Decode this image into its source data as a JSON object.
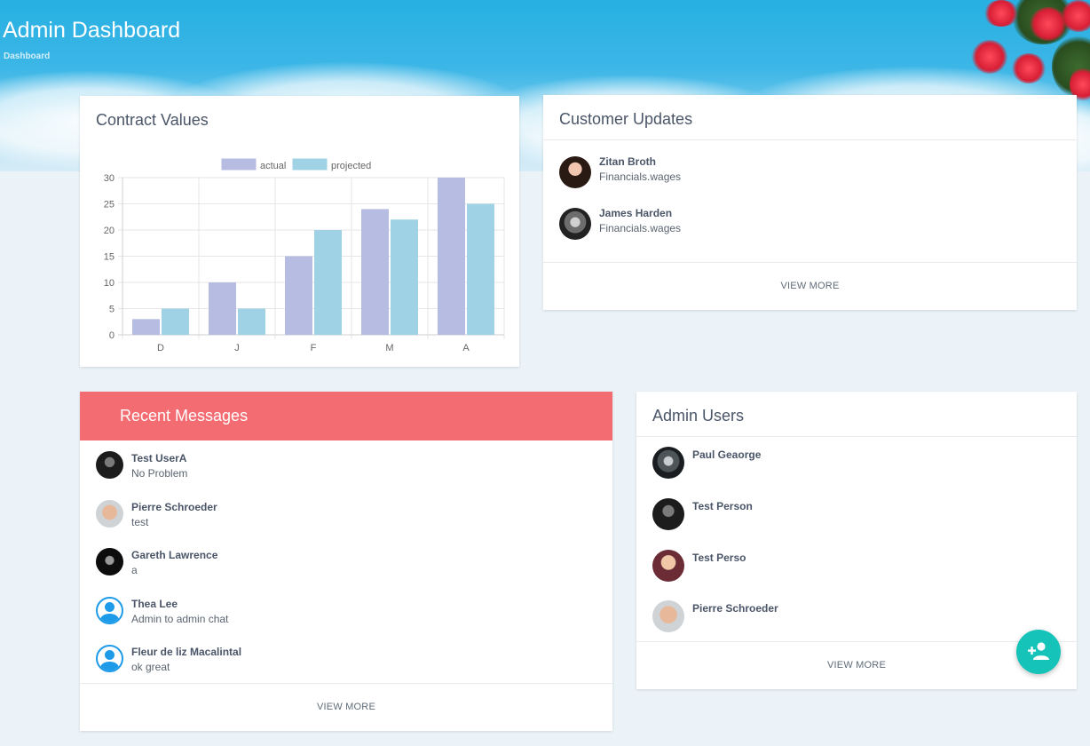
{
  "header": {
    "title": "Admin Dashboard",
    "breadcrumb": "Dashboard"
  },
  "contract": {
    "title": "Contract Values"
  },
  "chart_data": {
    "type": "bar",
    "categories": [
      "D",
      "J",
      "F",
      "M",
      "A"
    ],
    "series": [
      {
        "name": "actual",
        "values": [
          3,
          10,
          15,
          24,
          30
        ],
        "color": "#b7bde2"
      },
      {
        "name": "projected",
        "values": [
          5,
          5,
          20,
          22,
          25
        ],
        "color": "#9fd2e5"
      }
    ],
    "ylim": [
      0,
      30
    ],
    "yticks": [
      0,
      5,
      10,
      15,
      20,
      25,
      30
    ],
    "legend": "top",
    "grid": true
  },
  "customers": {
    "title": "Customer Updates",
    "items": [
      {
        "name": "Zitan Broth",
        "detail": "Financials.wages"
      },
      {
        "name": "James Harden",
        "detail": "Financials.wages"
      }
    ],
    "view_more": "VIEW MORE"
  },
  "messages": {
    "title": "Recent Messages",
    "items": [
      {
        "name": "Test UserA",
        "text": "No Problem"
      },
      {
        "name": "Pierre Schroeder",
        "text": "test"
      },
      {
        "name": "Gareth Lawrence",
        "text": "a"
      },
      {
        "name": "Thea Lee",
        "text": "Admin to admin chat"
      },
      {
        "name": "Fleur de liz Macalintal",
        "text": "ok great"
      }
    ],
    "view_more": "VIEW MORE"
  },
  "admins": {
    "title": "Admin Users",
    "items": [
      {
        "name": "Paul Geaorge"
      },
      {
        "name": "Test Person"
      },
      {
        "name": "Test Perso"
      },
      {
        "name": "Pierre Schroeder"
      }
    ],
    "view_more": "VIEW MORE"
  },
  "fab": {
    "icon": "person-add-icon"
  },
  "colors": {
    "accent_red": "#f36c72",
    "fab_teal": "#15c3b8",
    "hero_blue": "#27b0e3"
  }
}
